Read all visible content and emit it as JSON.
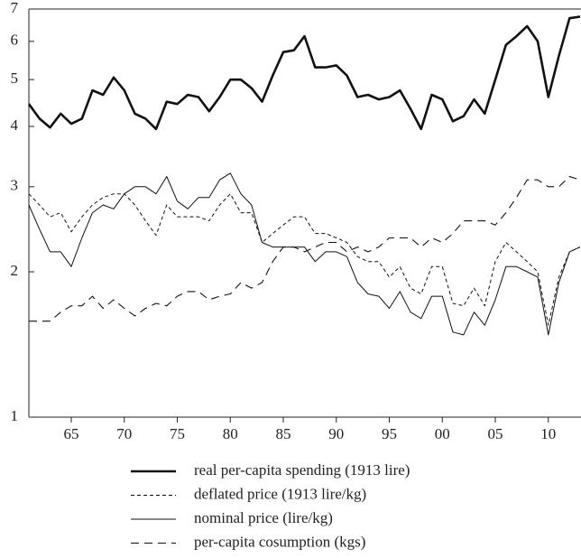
{
  "chart_data": {
    "type": "line",
    "x": [
      1861,
      1862,
      1863,
      1864,
      1865,
      1866,
      1867,
      1868,
      1869,
      1870,
      1871,
      1872,
      1873,
      1874,
      1875,
      1876,
      1877,
      1878,
      1879,
      1880,
      1881,
      1882,
      1883,
      1884,
      1885,
      1886,
      1887,
      1888,
      1889,
      1890,
      1891,
      1892,
      1893,
      1894,
      1895,
      1896,
      1897,
      1898,
      1899,
      1900,
      1901,
      1902,
      1903,
      1904,
      1905,
      1906,
      1907,
      1908,
      1909,
      1910,
      1911,
      1912,
      1913
    ],
    "xlim": [
      1861,
      1913
    ],
    "xticks": [
      {
        "value": 1865,
        "label": "65"
      },
      {
        "value": 1870,
        "label": "70"
      },
      {
        "value": 1875,
        "label": "75"
      },
      {
        "value": 1880,
        "label": "80"
      },
      {
        "value": 1885,
        "label": "85"
      },
      {
        "value": 1890,
        "label": "90"
      },
      {
        "value": 1895,
        "label": "95"
      },
      {
        "value": 1900,
        "label": "00"
      },
      {
        "value": 1905,
        "label": "05"
      },
      {
        "value": 1910,
        "label": "10"
      }
    ],
    "ylim": [
      1,
      7
    ],
    "yticks": [
      1,
      2,
      3,
      4,
      5,
      6,
      7
    ],
    "log_scale_y": true,
    "grid": false,
    "series": [
      {
        "name": "real per-capita spending (1913 lire)",
        "color": "#111111",
        "style": "thick",
        "values": [
          4.45,
          4.15,
          3.98,
          4.25,
          4.05,
          4.15,
          4.75,
          4.65,
          5.05,
          4.75,
          4.25,
          4.15,
          3.95,
          4.5,
          4.45,
          4.65,
          4.6,
          4.3,
          4.6,
          5.0,
          5.0,
          4.8,
          4.5,
          5.1,
          5.7,
          5.75,
          6.15,
          5.3,
          5.3,
          5.35,
          5.1,
          4.6,
          4.65,
          4.55,
          4.6,
          4.75,
          4.35,
          3.95,
          4.65,
          4.55,
          4.1,
          4.2,
          4.55,
          4.25,
          5.0,
          5.9,
          6.15,
          6.45,
          6.0,
          4.6,
          5.6,
          6.7,
          6.75
        ]
      },
      {
        "name": "deflated price (1913 lire/kg)",
        "color": "#111111",
        "style": "short-dash",
        "values": [
          2.9,
          2.75,
          2.6,
          2.65,
          2.42,
          2.6,
          2.75,
          2.85,
          2.9,
          2.9,
          2.75,
          2.55,
          2.38,
          2.75,
          2.6,
          2.6,
          2.6,
          2.55,
          2.75,
          2.9,
          2.65,
          2.65,
          2.3,
          2.4,
          2.5,
          2.6,
          2.6,
          2.4,
          2.4,
          2.35,
          2.3,
          2.15,
          2.1,
          2.1,
          1.95,
          2.05,
          1.85,
          1.8,
          2.05,
          2.05,
          1.72,
          1.7,
          1.85,
          1.7,
          2.1,
          2.3,
          2.2,
          2.1,
          2.0,
          1.55,
          1.95,
          2.2,
          2.25
        ]
      },
      {
        "name": "nominal price (lire/kg)",
        "color": "#111111",
        "style": "solid",
        "values": [
          2.75,
          2.45,
          2.2,
          2.2,
          2.05,
          2.35,
          2.65,
          2.75,
          2.7,
          2.9,
          3.0,
          3.0,
          2.9,
          3.15,
          2.8,
          2.7,
          2.85,
          2.85,
          3.1,
          3.2,
          2.9,
          2.75,
          2.3,
          2.25,
          2.25,
          2.25,
          2.25,
          2.1,
          2.2,
          2.2,
          2.15,
          1.9,
          1.8,
          1.78,
          1.68,
          1.82,
          1.65,
          1.6,
          1.78,
          1.78,
          1.5,
          1.48,
          1.65,
          1.55,
          1.75,
          2.05,
          2.05,
          2.0,
          1.95,
          1.48,
          1.9,
          2.2,
          2.25
        ]
      },
      {
        "name": "per-capita cosumption (kgs)",
        "color": "#111111",
        "style": "long-dash",
        "values": [
          1.58,
          1.58,
          1.58,
          1.65,
          1.7,
          1.7,
          1.78,
          1.68,
          1.75,
          1.68,
          1.62,
          1.68,
          1.72,
          1.7,
          1.78,
          1.82,
          1.82,
          1.75,
          1.78,
          1.8,
          1.9,
          1.85,
          1.9,
          2.1,
          2.25,
          2.25,
          2.2,
          2.25,
          2.3,
          2.3,
          2.2,
          2.25,
          2.2,
          2.25,
          2.35,
          2.35,
          2.35,
          2.25,
          2.35,
          2.3,
          2.4,
          2.55,
          2.55,
          2.55,
          2.5,
          2.65,
          2.85,
          3.1,
          3.1,
          3.0,
          3.0,
          3.15,
          3.1
        ]
      }
    ]
  }
}
